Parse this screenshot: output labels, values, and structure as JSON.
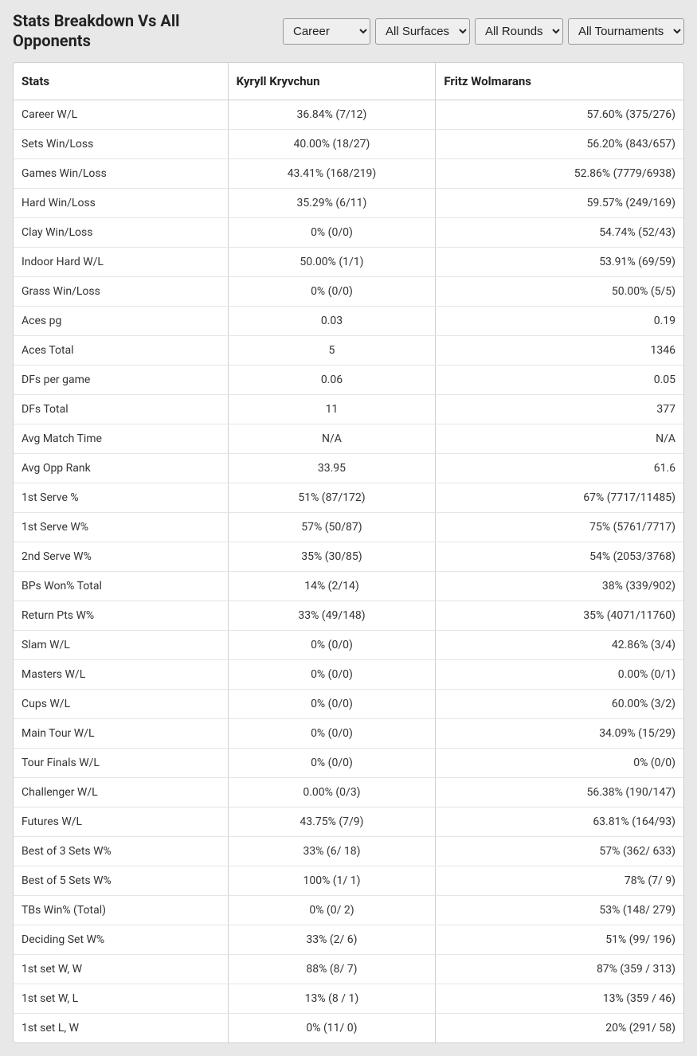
{
  "title": "Stats Breakdown Vs All Opponents",
  "filters": {
    "career": "Career",
    "surface": "All Surfaces",
    "rounds": "All Rounds",
    "tournaments": "All Tournaments"
  },
  "table": {
    "columns": [
      "Stats",
      "Kyryll Kryvchun",
      "Fritz Wolmarans"
    ],
    "rows": [
      {
        "stat": "Career W/L",
        "p1": "36.84% (7/12)",
        "p2": "57.60% (375/276)"
      },
      {
        "stat": "Sets Win/Loss",
        "p1": "40.00% (18/27)",
        "p2": "56.20% (843/657)"
      },
      {
        "stat": "Games Win/Loss",
        "p1": "43.41% (168/219)",
        "p2": "52.86% (7779/6938)"
      },
      {
        "stat": "Hard Win/Loss",
        "p1": "35.29% (6/11)",
        "p2": "59.57% (249/169)"
      },
      {
        "stat": "Clay Win/Loss",
        "p1": "0% (0/0)",
        "p2": "54.74% (52/43)"
      },
      {
        "stat": "Indoor Hard W/L",
        "p1": "50.00% (1/1)",
        "p2": "53.91% (69/59)"
      },
      {
        "stat": "Grass Win/Loss",
        "p1": "0% (0/0)",
        "p2": "50.00% (5/5)"
      },
      {
        "stat": "Aces pg",
        "p1": "0.03",
        "p2": "0.19"
      },
      {
        "stat": "Aces Total",
        "p1": "5",
        "p2": "1346"
      },
      {
        "stat": "DFs per game",
        "p1": "0.06",
        "p2": "0.05"
      },
      {
        "stat": "DFs Total",
        "p1": "11",
        "p2": "377"
      },
      {
        "stat": "Avg Match Time",
        "p1": "N/A",
        "p2": "N/A"
      },
      {
        "stat": "Avg Opp Rank",
        "p1": "33.95",
        "p2": "61.6"
      },
      {
        "stat": "1st Serve %",
        "p1": "51% (87/172)",
        "p2": "67% (7717/11485)"
      },
      {
        "stat": "1st Serve W%",
        "p1": "57% (50/87)",
        "p2": "75% (5761/7717)"
      },
      {
        "stat": "2nd Serve W%",
        "p1": "35% (30/85)",
        "p2": "54% (2053/3768)"
      },
      {
        "stat": "BPs Won% Total",
        "p1": "14% (2/14)",
        "p2": "38% (339/902)"
      },
      {
        "stat": "Return Pts W%",
        "p1": "33% (49/148)",
        "p2": "35% (4071/11760)"
      },
      {
        "stat": "Slam W/L",
        "p1": "0% (0/0)",
        "p2": "42.86% (3/4)"
      },
      {
        "stat": "Masters W/L",
        "p1": "0% (0/0)",
        "p2": "0.00% (0/1)"
      },
      {
        "stat": "Cups W/L",
        "p1": "0% (0/0)",
        "p2": "60.00% (3/2)"
      },
      {
        "stat": "Main Tour W/L",
        "p1": "0% (0/0)",
        "p2": "34.09% (15/29)"
      },
      {
        "stat": "Tour Finals W/L",
        "p1": "0% (0/0)",
        "p2": "0% (0/0)"
      },
      {
        "stat": "Challenger W/L",
        "p1": "0.00% (0/3)",
        "p2": "56.38% (190/147)"
      },
      {
        "stat": "Futures W/L",
        "p1": "43.75% (7/9)",
        "p2": "63.81% (164/93)"
      },
      {
        "stat": "Best of 3 Sets W%",
        "p1": "33% (6/ 18)",
        "p2": "57% (362/ 633)"
      },
      {
        "stat": "Best of 5 Sets W%",
        "p1": "100% (1/ 1)",
        "p2": "78% (7/ 9)"
      },
      {
        "stat": "TBs Win% (Total)",
        "p1": "0% (0/ 2)",
        "p2": "53% (148/ 279)"
      },
      {
        "stat": "Deciding Set W%",
        "p1": "33% (2/ 6)",
        "p2": "51% (99/ 196)"
      },
      {
        "stat": "1st set W, W",
        "p1": "88% (8/ 7)",
        "p2": "87% (359 / 313)"
      },
      {
        "stat": "1st set W, L",
        "p1": "13% (8 / 1)",
        "p2": "13% (359 / 46)"
      },
      {
        "stat": "1st set L, W",
        "p1": "0% (11/ 0)",
        "p2": "20% (291/ 58)"
      }
    ]
  }
}
